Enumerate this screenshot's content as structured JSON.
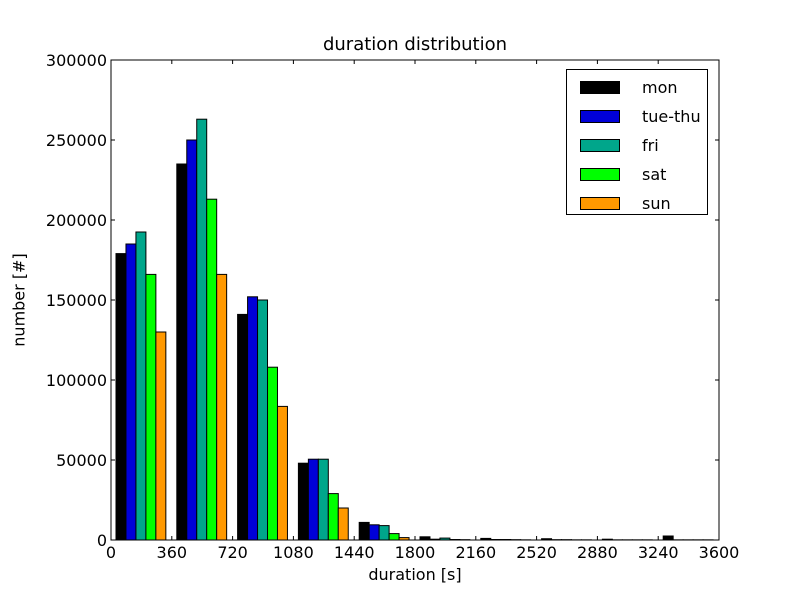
{
  "chart_data": {
    "type": "bar",
    "title": "duration distribution",
    "xlabel": "duration [s]",
    "ylabel": "number [#]",
    "xlim": [
      0,
      3600
    ],
    "ylim": [
      0,
      300000
    ],
    "grid": false,
    "legend_position": "upper right",
    "bin_width": 360,
    "categories": [
      "0-360",
      "360-720",
      "720-1080",
      "1080-1440",
      "1440-1800",
      "1800-2160",
      "2160-2520",
      "2520-2880",
      "2880-3240",
      "3240-3600"
    ],
    "bin_starts": [
      0,
      360,
      720,
      1080,
      1440,
      1800,
      2160,
      2520,
      2880,
      3240
    ],
    "xticks": [
      "0",
      "360",
      "720",
      "1080",
      "1440",
      "1800",
      "2160",
      "2520",
      "2880",
      "3240",
      "3600"
    ],
    "yticks": [
      "0",
      "50000",
      "100000",
      "150000",
      "200000",
      "250000",
      "300000"
    ],
    "series": [
      {
        "name": "mon",
        "color": "#000000",
        "values": [
          179000,
          235000,
          141000,
          48000,
          11000,
          2000,
          1000,
          800,
          500,
          2500
        ]
      },
      {
        "name": "tue-thu",
        "color": "#0000d8",
        "values": [
          185000,
          250000,
          152000,
          50500,
          9500,
          500,
          300,
          200,
          100,
          100
        ]
      },
      {
        "name": "fri",
        "color": "#00a68b",
        "values": [
          192500,
          263000,
          150000,
          50500,
          9000,
          1200,
          300,
          200,
          100,
          100
        ]
      },
      {
        "name": "sat",
        "color": "#00ff00",
        "values": [
          166000,
          213000,
          108000,
          29000,
          4000,
          300,
          200,
          100,
          100,
          100
        ]
      },
      {
        "name": "sun",
        "color": "#ff9900",
        "values": [
          130000,
          166000,
          83500,
          20000,
          1500,
          200,
          100,
          100,
          100,
          100
        ]
      }
    ]
  }
}
